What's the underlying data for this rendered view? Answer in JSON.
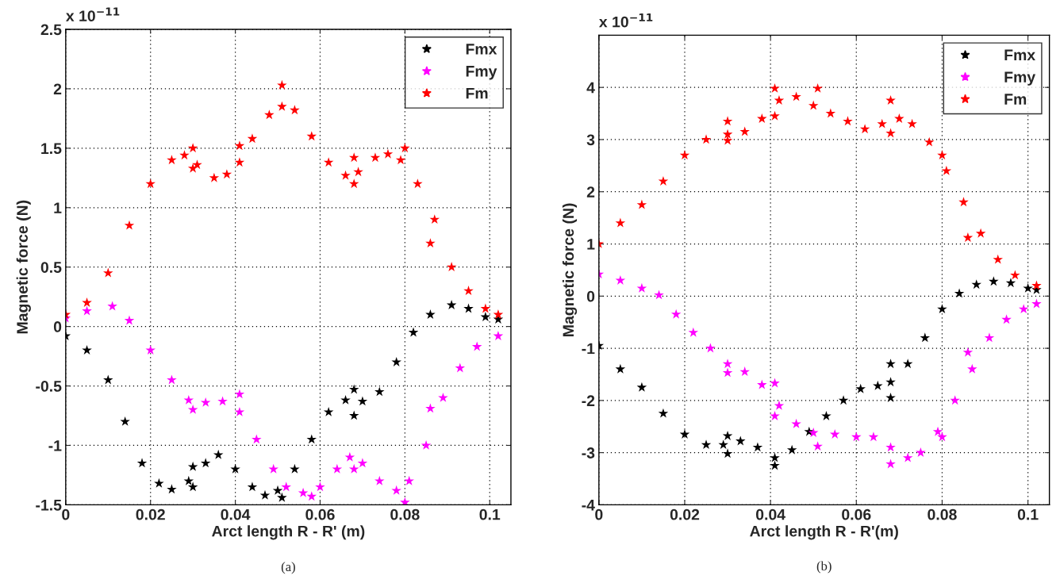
{
  "chart_data": [
    {
      "type": "scatter",
      "xlabel": "Arct length R - R' (m)",
      "ylabel": "Magnetic force (N)",
      "annotations": [
        "x 10$^{−11}$",
        "(a)"
      ],
      "xlim": [
        0,
        0.105
      ],
      "xticks": [
        0,
        0.02,
        0.04,
        0.06,
        0.08,
        0.1
      ],
      "ylim": [
        -1.5,
        2.5
      ],
      "yticks": [
        -1.5,
        -1,
        -0.5,
        0,
        0.5,
        1,
        1.5,
        2,
        2.5
      ],
      "grid": true,
      "legend": "top right",
      "marker": "star",
      "series": [
        {
          "name": "Fmx",
          "color": "#000000",
          "x": [
            0,
            0.005,
            0.01,
            0.014,
            0.018,
            0.022,
            0.025,
            0.029,
            0.033,
            0.036,
            0.04,
            0.044,
            0.047,
            0.05,
            0.054,
            0.058,
            0.062,
            0.066,
            0.07,
            0.074,
            0.078,
            0.082,
            0.086,
            0.091,
            0.095,
            0.099,
            0.102,
            0.03,
            0.03,
            0.068,
            0.068,
            0.051
          ],
          "values": [
            -0.08,
            -0.2,
            -0.45,
            -0.8,
            -1.15,
            -1.32,
            -1.37,
            -1.3,
            -1.15,
            -1.08,
            -1.2,
            -1.35,
            -1.42,
            -1.38,
            -1.2,
            -0.95,
            -0.72,
            -0.62,
            -0.63,
            -0.55,
            -0.3,
            -0.05,
            0.1,
            0.18,
            0.15,
            0.08,
            0.06,
            -1.35,
            -1.18,
            -0.53,
            -0.75,
            -1.44
          ]
        },
        {
          "name": "Fmy",
          "color": "#ff00ff",
          "x": [
            0,
            0.005,
            0.011,
            0.015,
            0.02,
            0.025,
            0.029,
            0.033,
            0.037,
            0.041,
            0.045,
            0.049,
            0.052,
            0.056,
            0.06,
            0.064,
            0.067,
            0.07,
            0.074,
            0.078,
            0.081,
            0.085,
            0.089,
            0.093,
            0.097,
            0.102,
            0.03,
            0.041,
            0.058,
            0.068,
            0.08,
            0.086
          ],
          "values": [
            0.07,
            0.13,
            0.17,
            0.05,
            -0.2,
            -0.45,
            -0.62,
            -0.64,
            -0.63,
            -0.72,
            -0.95,
            -1.2,
            -1.35,
            -1.4,
            -1.35,
            -1.2,
            -1.1,
            -1.15,
            -1.3,
            -1.38,
            -1.3,
            -1.0,
            -0.6,
            -0.35,
            -0.17,
            -0.08,
            -0.7,
            -0.57,
            -1.43,
            -1.2,
            -1.48,
            -0.69
          ]
        },
        {
          "name": "Fm",
          "color": "#ff0000",
          "x": [
            0,
            0.005,
            0.01,
            0.015,
            0.02,
            0.025,
            0.028,
            0.031,
            0.035,
            0.038,
            0.041,
            0.044,
            0.048,
            0.051,
            0.054,
            0.058,
            0.062,
            0.066,
            0.069,
            0.073,
            0.076,
            0.079,
            0.083,
            0.087,
            0.091,
            0.095,
            0.099,
            0.102,
            0.03,
            0.03,
            0.041,
            0.051,
            0.068,
            0.068,
            0.08,
            0.086
          ],
          "values": [
            0.1,
            0.2,
            0.45,
            0.85,
            1.2,
            1.4,
            1.44,
            1.36,
            1.25,
            1.28,
            1.38,
            1.58,
            1.78,
            1.85,
            1.82,
            1.6,
            1.38,
            1.27,
            1.3,
            1.42,
            1.45,
            1.4,
            1.2,
            0.9,
            0.5,
            0.3,
            0.15,
            0.1,
            1.5,
            1.33,
            1.52,
            2.03,
            1.42,
            1.2,
            1.5,
            0.7
          ]
        }
      ]
    },
    {
      "type": "scatter",
      "xlabel": "Arct length R - R'(m)",
      "ylabel": "Magnetic force (N)",
      "annotations": [
        "x 10$^{−11}$",
        "(b)"
      ],
      "xlim": [
        0,
        0.105
      ],
      "xticks": [
        0,
        0.02,
        0.04,
        0.06,
        0.08,
        0.1
      ],
      "ylim": [
        -4,
        5
      ],
      "yticks": [
        -4,
        -3,
        -2,
        -1,
        0,
        1,
        2,
        3,
        4
      ],
      "grid": true,
      "legend": "top right",
      "marker": "star",
      "series": [
        {
          "name": "Fmx",
          "color": "#000000",
          "x": [
            0,
            0.005,
            0.01,
            0.015,
            0.02,
            0.025,
            0.029,
            0.033,
            0.037,
            0.041,
            0.045,
            0.049,
            0.053,
            0.057,
            0.061,
            0.065,
            0.068,
            0.072,
            0.076,
            0.08,
            0.084,
            0.088,
            0.092,
            0.096,
            0.1,
            0.102,
            0.03,
            0.03,
            0.041,
            0.068,
            0.068
          ],
          "values": [
            -0.95,
            -1.4,
            -1.75,
            -2.25,
            -2.65,
            -2.85,
            -2.85,
            -2.78,
            -2.9,
            -3.1,
            -2.95,
            -2.6,
            -2.3,
            -2.0,
            -1.78,
            -1.72,
            -1.65,
            -1.3,
            -0.8,
            -0.25,
            0.05,
            0.22,
            0.28,
            0.25,
            0.15,
            0.12,
            -2.68,
            -3.02,
            -3.25,
            -1.3,
            -1.95
          ]
        },
        {
          "name": "Fmy",
          "color": "#ff00ff",
          "x": [
            0,
            0.005,
            0.01,
            0.014,
            0.018,
            0.022,
            0.026,
            0.03,
            0.034,
            0.038,
            0.042,
            0.046,
            0.05,
            0.055,
            0.06,
            0.064,
            0.068,
            0.072,
            0.075,
            0.079,
            0.083,
            0.087,
            0.091,
            0.095,
            0.099,
            0.102,
            0.03,
            0.041,
            0.041,
            0.051,
            0.068,
            0.08,
            0.086
          ],
          "values": [
            0.42,
            0.3,
            0.15,
            0.02,
            -0.35,
            -0.7,
            -1.0,
            -1.3,
            -1.45,
            -1.7,
            -2.1,
            -2.45,
            -2.62,
            -2.65,
            -2.7,
            -2.7,
            -2.9,
            -3.1,
            -3.0,
            -2.6,
            -2.0,
            -1.4,
            -0.8,
            -0.45,
            -0.25,
            -0.15,
            -1.47,
            -1.67,
            -2.3,
            -2.88,
            -3.22,
            -2.7,
            -1.08
          ]
        },
        {
          "name": "Fm",
          "color": "#ff0000",
          "x": [
            0,
            0.005,
            0.01,
            0.015,
            0.02,
            0.025,
            0.03,
            0.034,
            0.038,
            0.042,
            0.046,
            0.05,
            0.054,
            0.058,
            0.062,
            0.066,
            0.07,
            0.073,
            0.077,
            0.081,
            0.085,
            0.089,
            0.093,
            0.097,
            0.102,
            0.03,
            0.03,
            0.041,
            0.041,
            0.051,
            0.068,
            0.068,
            0.08,
            0.086
          ],
          "values": [
            1.0,
            1.4,
            1.75,
            2.2,
            2.7,
            3.0,
            3.1,
            3.15,
            3.4,
            3.75,
            3.82,
            3.65,
            3.5,
            3.35,
            3.2,
            3.3,
            3.4,
            3.3,
            2.95,
            2.4,
            1.8,
            1.2,
            0.7,
            0.4,
            0.2,
            3.35,
            2.98,
            3.98,
            3.45,
            3.98,
            3.75,
            3.12,
            2.7,
            1.12
          ]
        }
      ]
    }
  ]
}
